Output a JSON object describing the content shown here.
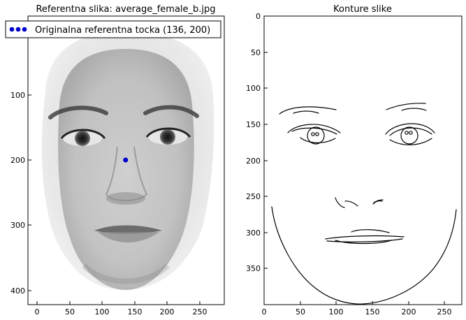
{
  "window": {
    "background": "#ffffff"
  },
  "left_panel": {
    "title": "Referentna slika: average_female_b.jpg",
    "x_ticks": [
      "0",
      "50",
      "100",
      "150",
      "200",
      "250"
    ],
    "y_ticks": [
      "100",
      "200",
      "300",
      "400"
    ],
    "legend_label": "Originalna referentna tocka (136, 200)",
    "marker_color": "#0000cc",
    "reference_point": {
      "x": 136,
      "y": 200
    },
    "image_description_icon": "face-photo"
  },
  "right_panel": {
    "title": "Konture slike",
    "x_ticks": [
      "0",
      "50",
      "100",
      "150",
      "200",
      "250"
    ],
    "y_ticks": [
      "0",
      "50",
      "100",
      "150",
      "200",
      "250",
      "300",
      "350"
    ],
    "contour_color": "#000000"
  }
}
